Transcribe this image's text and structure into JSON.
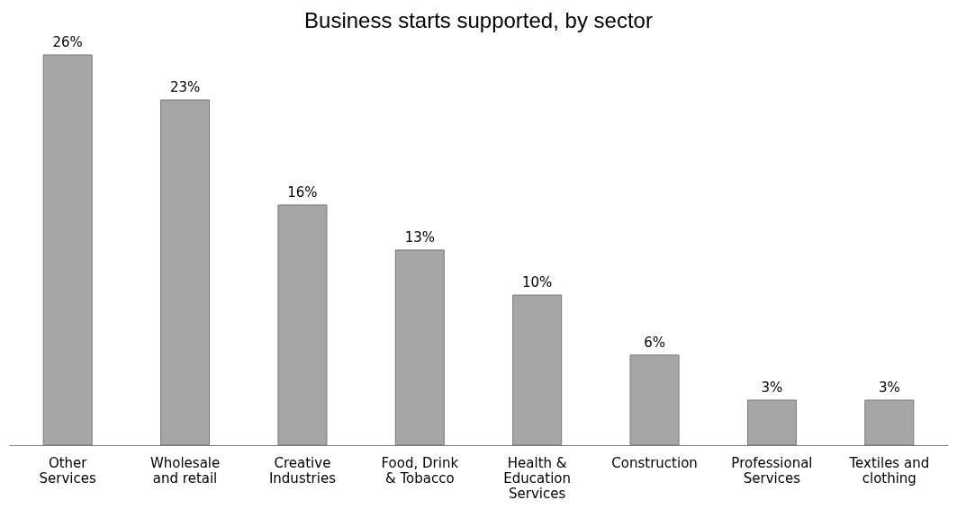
{
  "chart_data": {
    "type": "bar",
    "title": "Business starts supported, by sector",
    "categories": [
      "Other Services",
      "Wholesale and retail",
      "Creative Industries",
      "Food, Drink & Tobacco",
      "Health & Education Services",
      "Construction",
      "Professional Services",
      "Textiles and clothing"
    ],
    "values": [
      26,
      23,
      16,
      13,
      10,
      6,
      3,
      3
    ],
    "value_labels": [
      "26%",
      "23%",
      "16%",
      "13%",
      "10%",
      "6%",
      "3%",
      "3%"
    ],
    "color": "#a6a6a6"
  }
}
